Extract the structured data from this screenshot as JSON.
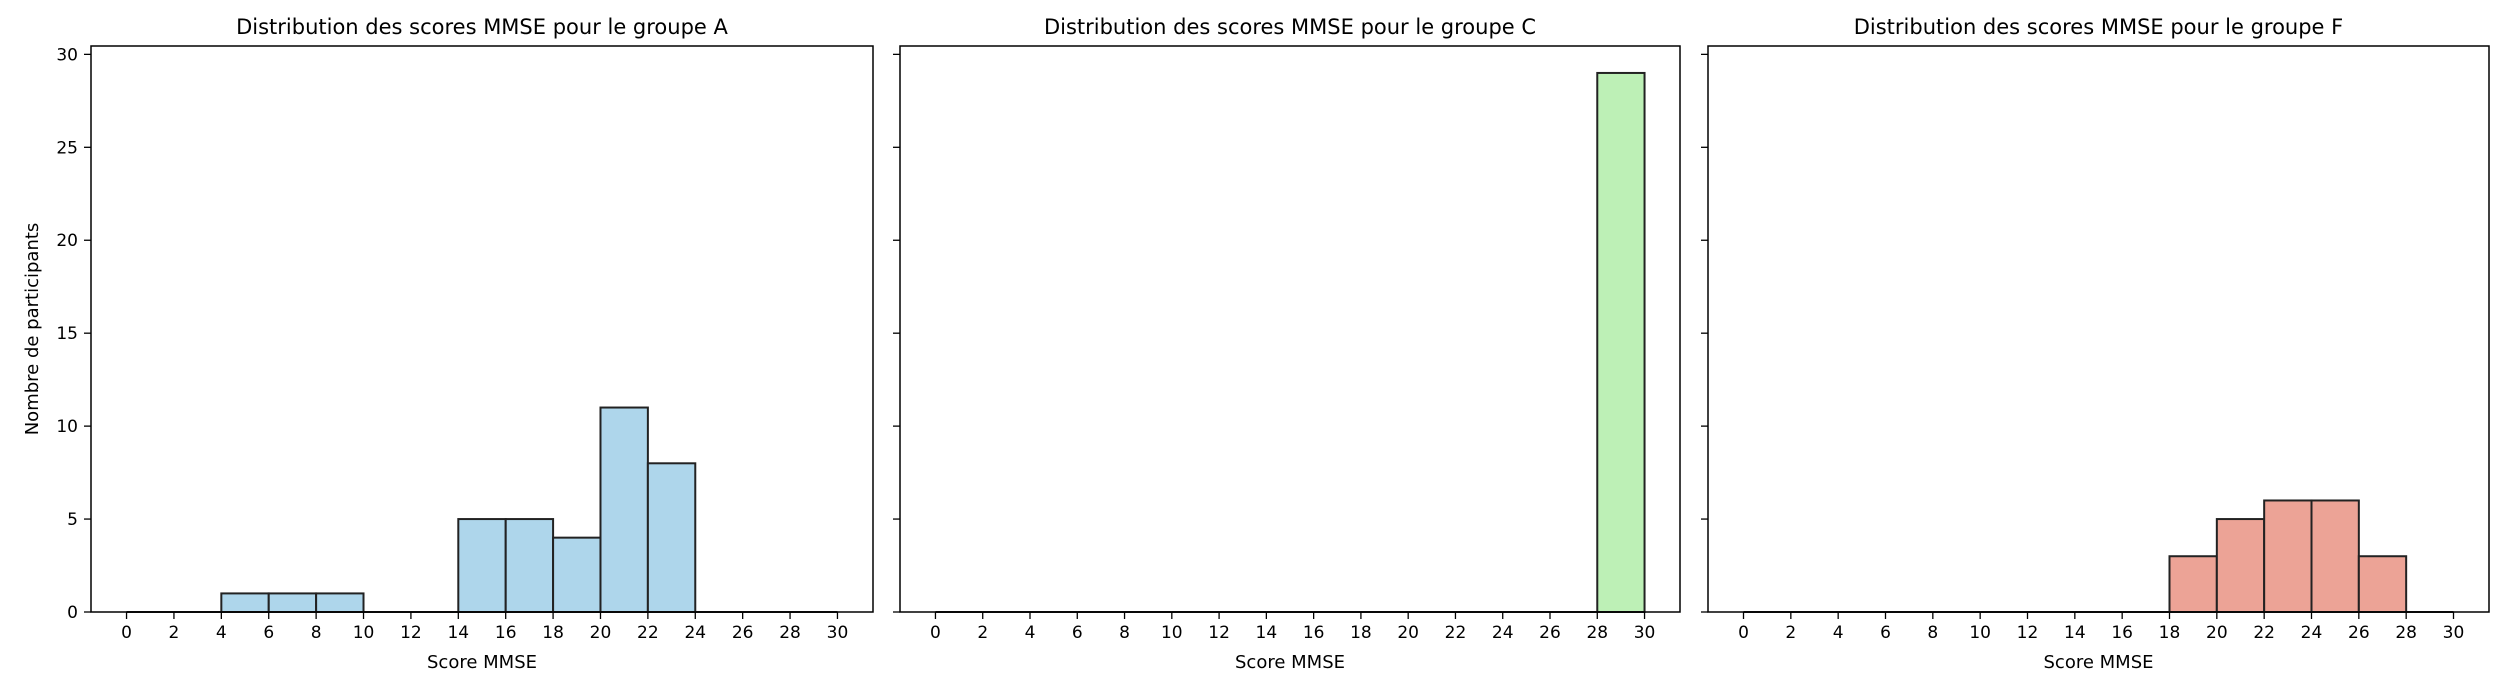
{
  "chart_data": [
    {
      "type": "bar",
      "title": "Distribution des scores MMSE pour le groupe A",
      "xlabel": "Score MMSE",
      "ylabel": "Nombre de participants",
      "bin_edges": [
        0,
        2,
        4,
        6,
        8,
        10,
        12,
        14,
        16,
        18,
        20,
        22,
        24,
        26,
        28,
        30
      ],
      "values": [
        0,
        0,
        1,
        1,
        1,
        0,
        0,
        5,
        5,
        4,
        11,
        8,
        0,
        0,
        0
      ],
      "color": "#aed6eb",
      "edge_color": "#222222",
      "xticks": [
        "0",
        "2",
        "4",
        "6",
        "8",
        "10",
        "12",
        "14",
        "16",
        "18",
        "20",
        "22",
        "24",
        "26",
        "28",
        "30"
      ],
      "yticks": [
        "0",
        "5",
        "10",
        "15",
        "20",
        "25",
        "30"
      ],
      "xlim": [
        -1.5,
        31.5
      ],
      "ylim": [
        0,
        30.45
      ],
      "grid": false
    },
    {
      "type": "bar",
      "title": "Distribution des scores MMSE pour le groupe C",
      "xlabel": "Score MMSE",
      "ylabel": "",
      "bin_edges": [
        0,
        2,
        4,
        6,
        8,
        10,
        12,
        14,
        16,
        18,
        20,
        22,
        24,
        26,
        28,
        30
      ],
      "values": [
        0,
        0,
        0,
        0,
        0,
        0,
        0,
        0,
        0,
        0,
        0,
        0,
        0,
        0,
        29
      ],
      "color": "#bdf0b6",
      "edge_color": "#222222",
      "xticks": [
        "0",
        "2",
        "4",
        "6",
        "8",
        "10",
        "12",
        "14",
        "16",
        "18",
        "20",
        "22",
        "24",
        "26",
        "28",
        "30"
      ],
      "yticks": [],
      "xlim": [
        -1.5,
        31.5
      ],
      "ylim": [
        0,
        30.45
      ],
      "grid": false
    },
    {
      "type": "bar",
      "title": "Distribution des scores MMSE pour le groupe F",
      "xlabel": "Score MMSE",
      "ylabel": "",
      "bin_edges": [
        0,
        2,
        4,
        6,
        8,
        10,
        12,
        14,
        16,
        18,
        20,
        22,
        24,
        26,
        28,
        30
      ],
      "values": [
        0,
        0,
        0,
        0,
        0,
        0,
        0,
        0,
        0,
        3,
        5,
        6,
        6,
        3,
        0
      ],
      "color": "#eca396",
      "edge_color": "#222222",
      "xticks": [
        "0",
        "2",
        "4",
        "6",
        "8",
        "10",
        "12",
        "14",
        "16",
        "18",
        "20",
        "22",
        "24",
        "26",
        "28",
        "30"
      ],
      "yticks": [],
      "xlim": [
        -1.5,
        31.5
      ],
      "ylim": [
        0,
        30.45
      ],
      "grid": false
    }
  ]
}
